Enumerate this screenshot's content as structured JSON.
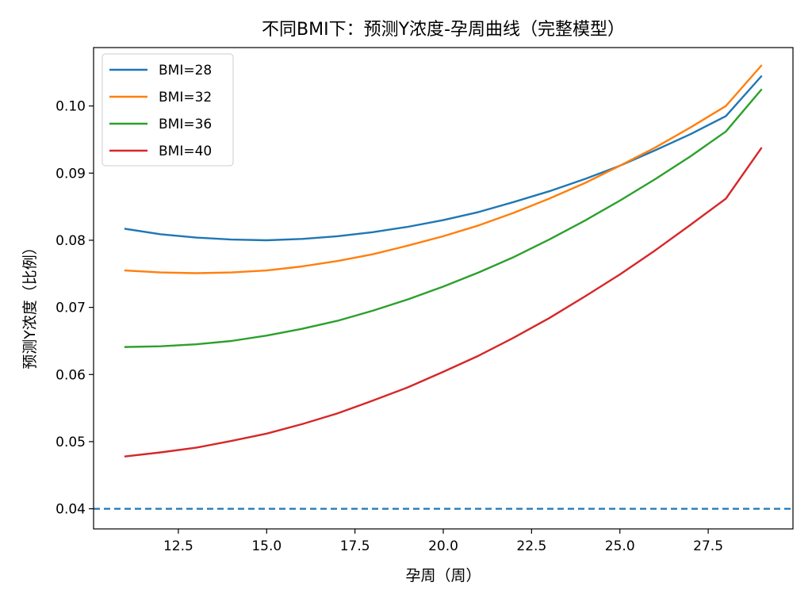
{
  "chart_data": {
    "type": "line",
    "title": "不同BMI下：预测Y浓度-孕周曲线（完整模型）",
    "xlabel": "孕周（周）",
    "ylabel": "预测Y浓度（比例）",
    "xlim": [
      10.1,
      29.9
    ],
    "ylim": [
      0.037,
      0.1087
    ],
    "xticks": [
      12.5,
      15.0,
      17.5,
      20.0,
      22.5,
      25.0,
      27.5
    ],
    "xtick_labels": [
      "12.5",
      "15.0",
      "17.5",
      "20.0",
      "22.5",
      "25.0",
      "27.5"
    ],
    "yticks": [
      0.04,
      0.05,
      0.06,
      0.07,
      0.08,
      0.09,
      0.1
    ],
    "ytick_labels": [
      "0.04",
      "0.05",
      "0.06",
      "0.07",
      "0.08",
      "0.09",
      "0.10"
    ],
    "grid": false,
    "legend_position": "top-left",
    "series": [
      {
        "name": "BMI=28",
        "color": "#1f77b4",
        "x": [
          11,
          12,
          13,
          14,
          15,
          16,
          17,
          18,
          19,
          20,
          21,
          22,
          23,
          24,
          25,
          26,
          27,
          28,
          29
        ],
        "y": [
          0.0817,
          0.0809,
          0.0804,
          0.0801,
          0.08,
          0.0802,
          0.0806,
          0.0812,
          0.082,
          0.083,
          0.0842,
          0.0857,
          0.0873,
          0.0891,
          0.0911,
          0.0934,
          0.0958,
          0.0985,
          0.1044
        ]
      },
      {
        "name": "BMI=32",
        "color": "#ff7f0e",
        "x": [
          11,
          12,
          13,
          14,
          15,
          16,
          17,
          18,
          19,
          20,
          21,
          22,
          23,
          24,
          25,
          26,
          27,
          28,
          29
        ],
        "y": [
          0.0755,
          0.0752,
          0.0751,
          0.0752,
          0.0755,
          0.0761,
          0.0769,
          0.0779,
          0.0792,
          0.0806,
          0.0822,
          0.0841,
          0.0862,
          0.0885,
          0.0911,
          0.0938,
          0.0968,
          0.1,
          0.106
        ]
      },
      {
        "name": "BMI=36",
        "color": "#2ca02c",
        "x": [
          11,
          12,
          13,
          14,
          15,
          16,
          17,
          18,
          19,
          20,
          21,
          22,
          23,
          24,
          25,
          26,
          27,
          28,
          29
        ],
        "y": [
          0.0641,
          0.0642,
          0.0645,
          0.065,
          0.0658,
          0.0668,
          0.068,
          0.0695,
          0.0712,
          0.0731,
          0.0752,
          0.0775,
          0.0801,
          0.0829,
          0.0859,
          0.0891,
          0.0925,
          0.0962,
          0.1024
        ]
      },
      {
        "name": "BMI=40",
        "color": "#d62728",
        "x": [
          11,
          12,
          13,
          14,
          15,
          16,
          17,
          18,
          19,
          20,
          21,
          22,
          23,
          24,
          25,
          26,
          27,
          28,
          29
        ],
        "y": [
          0.0478,
          0.0484,
          0.0491,
          0.0501,
          0.0512,
          0.0526,
          0.0542,
          0.0561,
          0.0581,
          0.0604,
          0.0628,
          0.0655,
          0.0684,
          0.0716,
          0.0749,
          0.0785,
          0.0823,
          0.0862,
          0.0937
        ]
      }
    ],
    "reference_lines": [
      {
        "axis": "y",
        "value": 0.04,
        "style": "dashed",
        "color": "#1f77b4"
      }
    ]
  }
}
